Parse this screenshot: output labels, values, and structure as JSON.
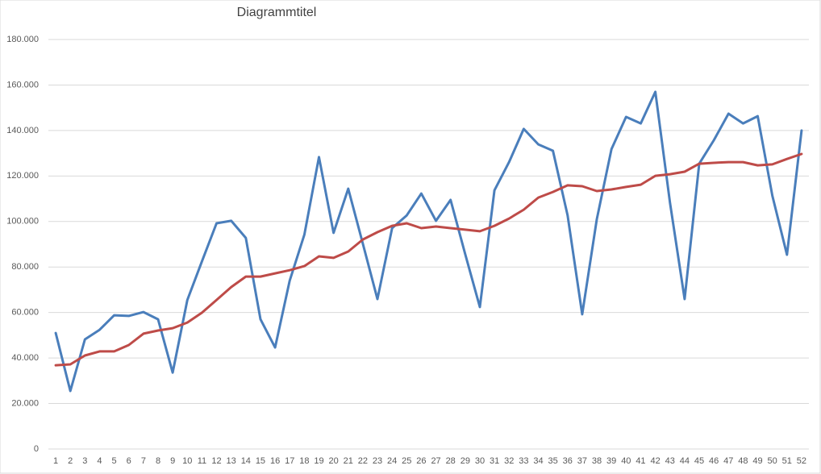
{
  "chart_data": {
    "type": "line",
    "title": "Diagrammtitel",
    "categories": [
      "1",
      "2",
      "3",
      "4",
      "5",
      "6",
      "7",
      "8",
      "9",
      "10",
      "11",
      "12",
      "13",
      "14",
      "15",
      "16",
      "17",
      "18",
      "19",
      "20",
      "21",
      "22",
      "23",
      "24",
      "25",
      "26",
      "27",
      "28",
      "29",
      "30",
      "31",
      "32",
      "33",
      "34",
      "35",
      "36",
      "37",
      "38",
      "39",
      "40",
      "41",
      "42",
      "43",
      "44",
      "45",
      "46",
      "47",
      "48",
      "49",
      "50",
      "51",
      "52"
    ],
    "series": [
      {
        "color": "#4a7ebb",
        "values": [
          51000,
          25500,
          48200,
          52400,
          58800,
          58500,
          60200,
          57000,
          33600,
          65500,
          82500,
          99200,
          100300,
          92800,
          57000,
          44600,
          74000,
          94200,
          128300,
          95000,
          114400,
          90300,
          65900,
          97100,
          102700,
          112300,
          100300,
          109500,
          85700,
          62400,
          113700,
          126100,
          140700,
          133900,
          131100,
          102700,
          59200,
          101000,
          131800,
          146000,
          143100,
          157000,
          108400,
          65900,
          125400,
          135700,
          147400,
          143100,
          146300,
          111300,
          85400,
          140000
        ]
      },
      {
        "color": "#be4b48",
        "values": [
          36800,
          37200,
          41100,
          42900,
          42900,
          45700,
          50700,
          52100,
          53100,
          55600,
          59900,
          65500,
          71200,
          75800,
          75800,
          77200,
          78600,
          80400,
          84700,
          84000,
          86800,
          92100,
          95300,
          98100,
          99200,
          97100,
          97800,
          97100,
          96400,
          95700,
          98100,
          101300,
          105200,
          110500,
          113000,
          115900,
          115500,
          113400,
          114100,
          115200,
          116200,
          120100,
          120800,
          121900,
          125400,
          125800,
          126100,
          126100,
          124700,
          125100,
          127500,
          129700
        ]
      }
    ],
    "ylim": [
      0,
      180000
    ],
    "yticks": [
      0,
      {
        "value": 20000,
        "label": "20.000"
      },
      {
        "value": 40000,
        "label": "40.000"
      },
      {
        "value": 60000,
        "label": "60.000"
      },
      {
        "value": 80000,
        "label": "80.000"
      },
      {
        "value": 100000,
        "label": "100.000"
      },
      {
        "value": 120000,
        "label": "120.000"
      },
      {
        "value": 140000,
        "label": "140.000"
      },
      {
        "value": 160000,
        "label": "160.000"
      },
      {
        "value": 180000,
        "label": "180.000"
      }
    ],
    "grid": true
  }
}
